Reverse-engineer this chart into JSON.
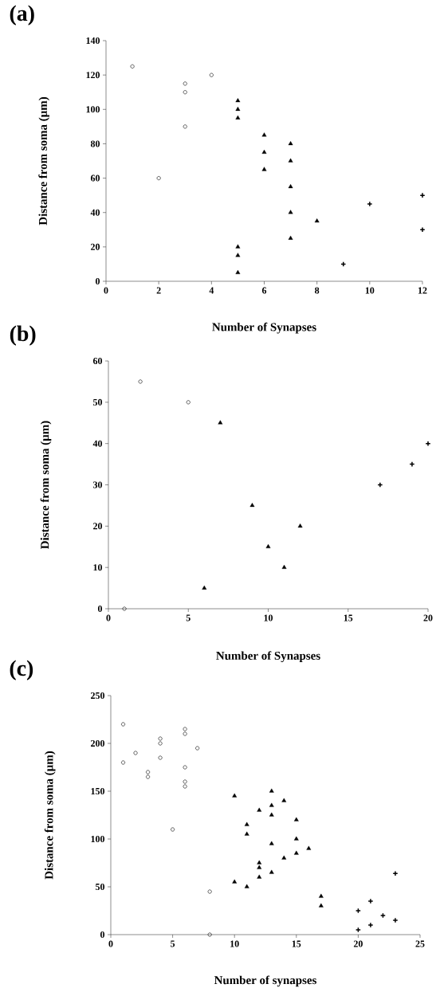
{
  "chart_data": [
    {
      "type": "scatter",
      "title": "(a)",
      "xlabel": "Number of Synapses",
      "ylabel": "Distance from soma (µm)",
      "xlim": [
        0,
        12
      ],
      "ylim": [
        0,
        140
      ],
      "xticks": [
        0,
        2,
        4,
        6,
        8,
        10,
        12
      ],
      "yticks": [
        0,
        20,
        40,
        60,
        80,
        100,
        120,
        140
      ],
      "series": [
        {
          "color": "#000000",
          "marker": "circle",
          "x": [
            1,
            2,
            3,
            3,
            3,
            4
          ],
          "values": [
            125,
            60,
            115,
            110,
            90,
            120
          ]
        },
        {
          "color": "#000000",
          "marker": "triangle",
          "x": [
            5,
            5,
            5,
            5,
            5,
            5,
            6,
            6,
            6,
            7,
            7,
            7,
            7,
            7,
            8
          ],
          "values": [
            105,
            100,
            95,
            20,
            15,
            5,
            85,
            75,
            65,
            80,
            70,
            55,
            40,
            25,
            35
          ]
        },
        {
          "color": "#000000",
          "marker": "cross",
          "x": [
            9,
            10,
            12,
            12
          ],
          "values": [
            10,
            45,
            50,
            30
          ]
        }
      ]
    },
    {
      "type": "scatter",
      "title": "(b)",
      "xlabel": "Number of Synapses",
      "ylabel": "Distance from soma (µm)",
      "xlim": [
        0,
        20
      ],
      "ylim": [
        0,
        60
      ],
      "xticks": [
        0,
        5,
        10,
        15,
        20
      ],
      "yticks": [
        0,
        10,
        20,
        30,
        40,
        50,
        60
      ],
      "series": [
        {
          "color": "#000000",
          "marker": "circle",
          "x": [
            1,
            2,
            5
          ],
          "values": [
            0,
            55,
            50
          ]
        },
        {
          "color": "#000000",
          "marker": "triangle",
          "x": [
            6,
            7,
            9,
            10,
            11,
            12
          ],
          "values": [
            5,
            45,
            25,
            15,
            10,
            20
          ]
        },
        {
          "color": "#000000",
          "marker": "cross",
          "x": [
            17,
            19,
            20
          ],
          "values": [
            30,
            35,
            40
          ]
        }
      ]
    },
    {
      "type": "scatter",
      "title": "(c)",
      "xlabel": "Number of synapses",
      "ylabel": "Distance from soma (µm)",
      "xlim": [
        0,
        25
      ],
      "ylim": [
        0,
        250
      ],
      "xticks": [
        0,
        5,
        10,
        15,
        20,
        25
      ],
      "yticks": [
        0,
        50,
        100,
        150,
        200,
        250
      ],
      "series": [
        {
          "color": "#000000",
          "marker": "circle",
          "x": [
            1,
            1,
            2,
            3,
            3,
            4,
            4,
            4,
            5,
            6,
            6,
            6,
            6,
            6,
            7,
            8,
            8
          ],
          "values": [
            220,
            180,
            190,
            170,
            165,
            205,
            200,
            185,
            110,
            215,
            210,
            175,
            160,
            155,
            195,
            45,
            0
          ]
        },
        {
          "color": "#000000",
          "marker": "triangle",
          "x": [
            10,
            10,
            11,
            11,
            11,
            12,
            12,
            12,
            12,
            13,
            13,
            13,
            13,
            13,
            14,
            14,
            15,
            15,
            15,
            16,
            17,
            17
          ],
          "values": [
            145,
            55,
            115,
            105,
            50,
            130,
            75,
            70,
            60,
            150,
            135,
            125,
            95,
            65,
            140,
            80,
            120,
            100,
            85,
            90,
            40,
            30
          ]
        },
        {
          "color": "#000000",
          "marker": "cross",
          "x": [
            20,
            20,
            21,
            21,
            22,
            23,
            23
          ],
          "values": [
            25,
            5,
            35,
            10,
            20,
            64,
            15
          ]
        }
      ]
    }
  ]
}
